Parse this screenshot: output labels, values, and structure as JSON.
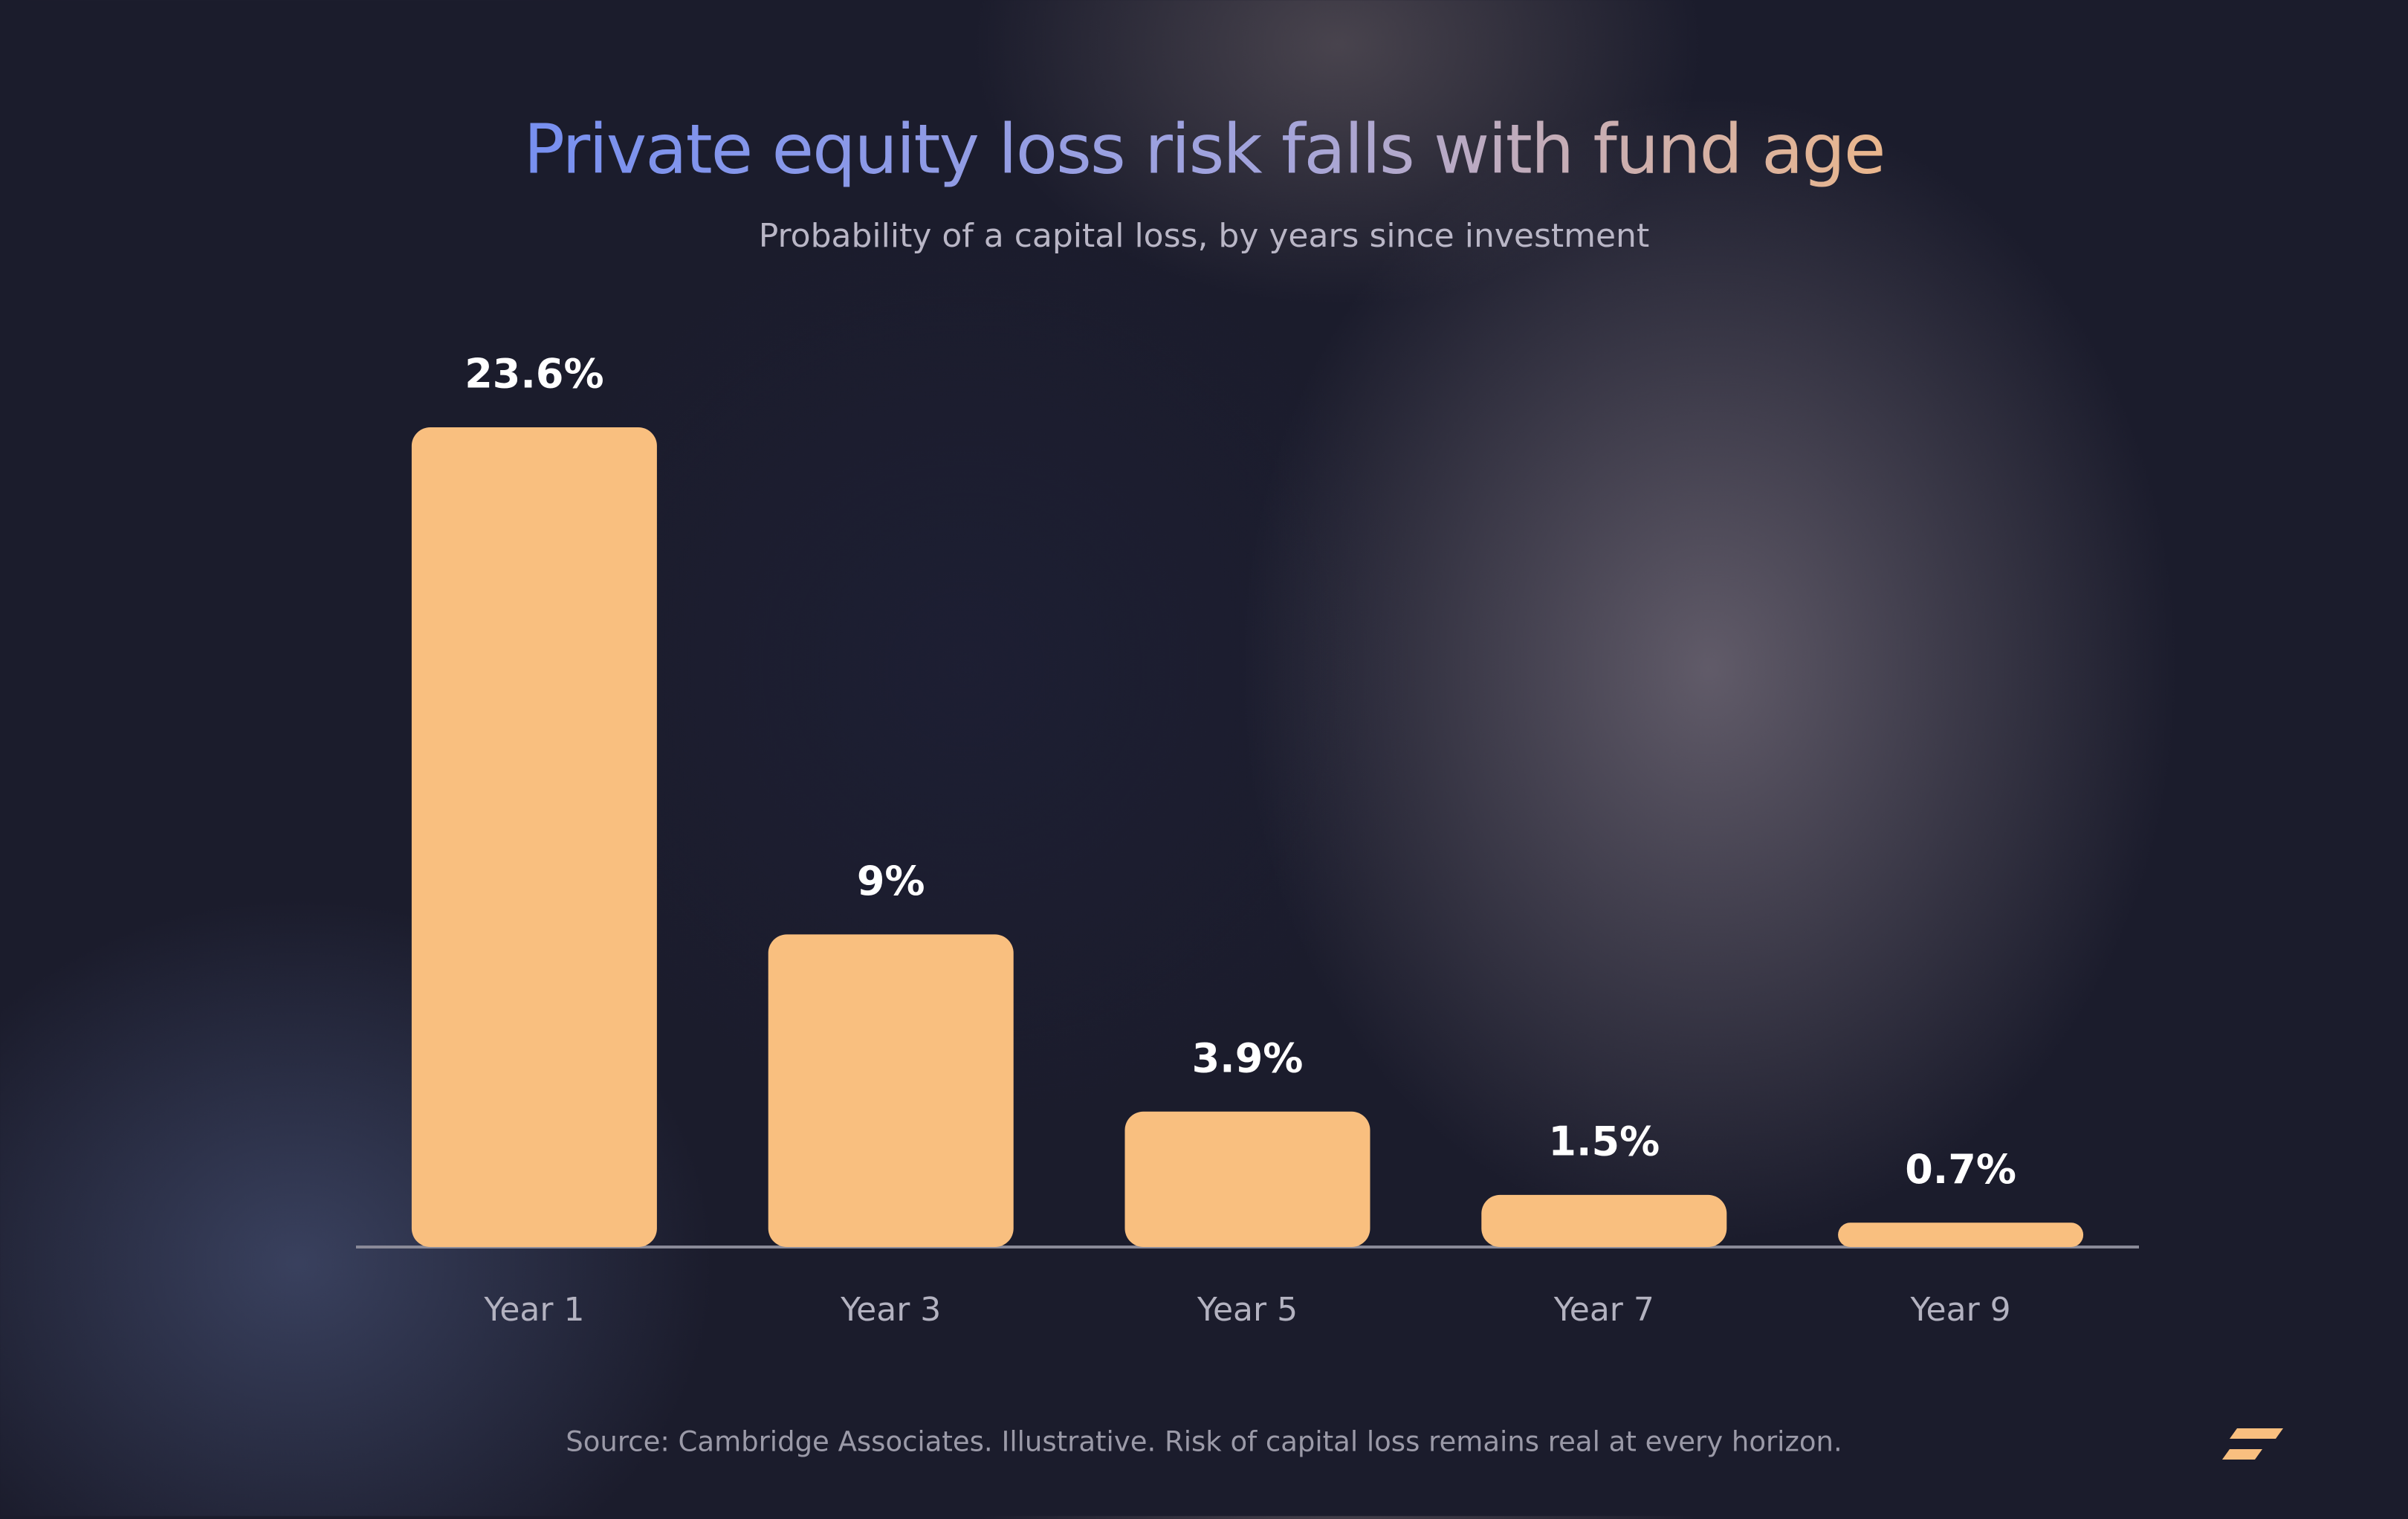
{
  "chart_data": {
    "type": "bar",
    "title": "Private equity loss risk falls with fund age",
    "subtitle": "Probability of a capital loss, by years since investment",
    "categories": [
      "Year 1",
      "Year 3",
      "Year 5",
      "Year 7",
      "Year 9"
    ],
    "values": [
      23.6,
      9,
      3.9,
      1.5,
      0.7
    ],
    "value_labels": [
      "23.6%",
      "9%",
      "3.9%",
      "1.5%",
      "0.7%"
    ],
    "color": "#f9bf7f",
    "source": "Source: Cambridge Associates. Illustrative. Risk of capital loss remains real at every horizon."
  }
}
